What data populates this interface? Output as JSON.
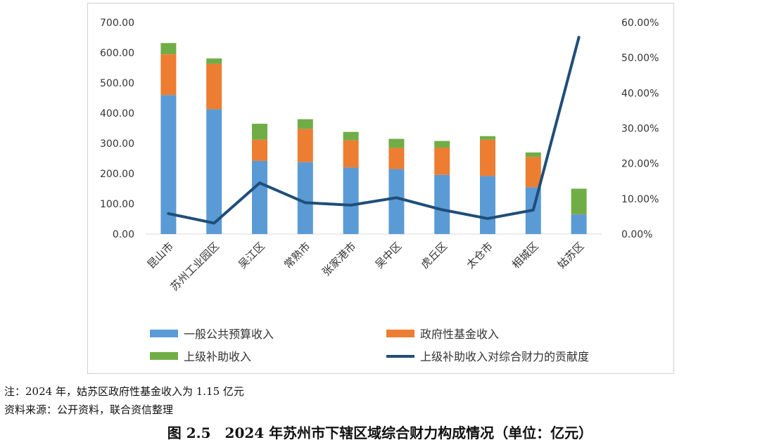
{
  "chart_data": {
    "type": "bar",
    "stacked": true,
    "categories": [
      "昆山市",
      "苏州工业园区",
      "吴江区",
      "常熟市",
      "张家港市",
      "吴中区",
      "虎丘区",
      "太仓市",
      "相城区",
      "姑苏区"
    ],
    "series": [
      {
        "name": "一般公共预算收入",
        "kind": "bar",
        "axis": "left",
        "color": "#5B9BD5",
        "values": [
          460,
          413,
          242,
          238,
          220,
          215,
          196,
          192,
          155,
          65
        ]
      },
      {
        "name": "政府性基金收入",
        "kind": "bar",
        "axis": "left",
        "color": "#ED7D31",
        "values": [
          135,
          150,
          70,
          110,
          90,
          70,
          90,
          120,
          100,
          1.15
        ]
      },
      {
        "name": "上级补助收入",
        "kind": "bar",
        "axis": "left",
        "color": "#70AD47",
        "values": [
          37,
          18,
          53,
          32,
          28,
          30,
          22,
          12,
          15,
          84
        ]
      },
      {
        "name": "上级补助收入对综合财力的贡献度",
        "kind": "line",
        "axis": "right",
        "color": "#1F4E79",
        "values": [
          5.8,
          3.1,
          14.5,
          8.9,
          8.2,
          10.3,
          6.9,
          4.4,
          6.8,
          55.8
        ]
      }
    ],
    "y_left": {
      "min": 0,
      "max": 700,
      "step": 100,
      "tick_labels": [
        "0.00",
        "100.00",
        "200.00",
        "300.00",
        "400.00",
        "500.00",
        "600.00",
        "700.00"
      ]
    },
    "y_right": {
      "min": 0,
      "max": 60,
      "step": 10,
      "tick_labels": [
        "0.00%",
        "10.00%",
        "20.00%",
        "30.00%",
        "40.00%",
        "50.00%",
        "60.00%"
      ]
    },
    "grid": false,
    "legend_position": "bottom"
  },
  "note": "注：2024 年，姑苏区政府性基金收入为 1.15 亿元",
  "source": "资料来源：公开资料，联合资信整理",
  "caption": "图 2.5　2024 年苏州市下辖区域综合财力构成情况（单位：亿元）"
}
